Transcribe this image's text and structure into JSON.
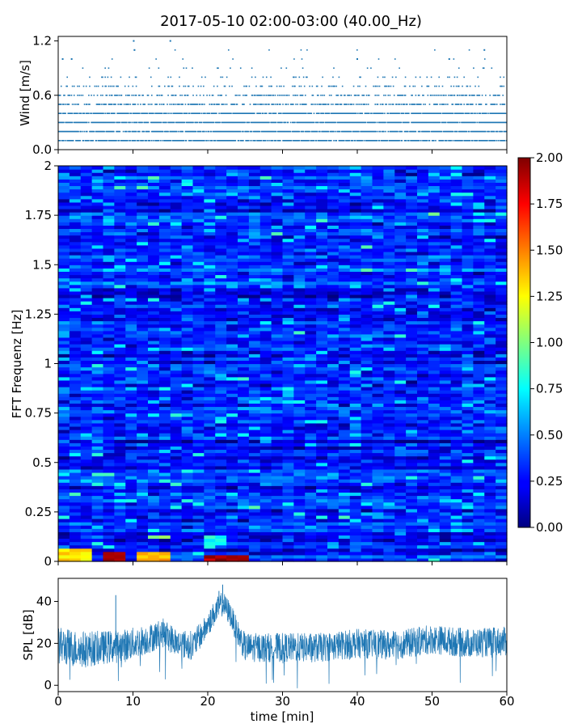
{
  "title": "2017-05-10 02:00-03:00 (40.00_Hz)",
  "chart_data": [
    {
      "type": "scatter",
      "ylabel": "Wind [m/s]",
      "xlabel": "",
      "xlim": [
        0,
        60
      ],
      "ylim": [
        0,
        1.25
      ],
      "yticks": [
        "0.0",
        "0.6",
        "1.2"
      ],
      "xticks": [
        0,
        10,
        20,
        30,
        40,
        50,
        60
      ],
      "marker_color": "#1f77b4",
      "levels": [
        0.1,
        0.2,
        0.3,
        0.4,
        0.5,
        0.6,
        0.7,
        0.8,
        0.9,
        1.0,
        1.1,
        1.2
      ],
      "level_frequency": [
        0.8,
        0.85,
        0.9,
        0.85,
        0.6,
        0.45,
        0.25,
        0.1,
        0.04,
        0.02,
        0.006,
        0.003
      ],
      "notable_points": [
        {
          "x": 10.1,
          "y": 1.2
        },
        {
          "x": 15.0,
          "y": 1.2
        },
        {
          "x": 57.0,
          "y": 1.1
        },
        {
          "x": 0.6,
          "y": 1.0
        },
        {
          "x": 1.8,
          "y": 1.0
        },
        {
          "x": 10.2,
          "y": 1.1
        },
        {
          "x": 40.0,
          "y": 1.0
        },
        {
          "x": 52.3,
          "y": 1.0
        }
      ]
    },
    {
      "type": "heatmap",
      "ylabel": "FFT Frequenz [Hz]",
      "xlim": [
        0,
        60
      ],
      "ylim": [
        0,
        2
      ],
      "yticks": [
        "0",
        "0.25",
        "0.5",
        "0.75",
        "1",
        "1.25",
        "1.5",
        "1.75",
        "2"
      ],
      "colormap": "jet",
      "typical_value": 0.3,
      "hot_regions": [
        {
          "x": [
            0,
            4
          ],
          "y": [
            0,
            0.07
          ],
          "value": 1.4
        },
        {
          "x": [
            5.3,
            8.5
          ],
          "y": [
            0,
            0.05
          ],
          "value": 2.0
        },
        {
          "x": [
            11,
            15
          ],
          "y": [
            0,
            0.05
          ],
          "value": 1.5
        },
        {
          "x": [
            19,
            23
          ],
          "y": [
            0,
            0.03
          ],
          "value": 2.0
        },
        {
          "x": [
            23,
            25
          ],
          "y": [
            0,
            0.03
          ],
          "value": 2.0
        },
        {
          "x": [
            12,
            15
          ],
          "y": [
            0.12,
            0.14
          ],
          "value": 1.1
        },
        {
          "x": [
            19,
            23
          ],
          "y": [
            0.08,
            0.14
          ],
          "value": 0.9
        }
      ],
      "colorbar": {
        "range": [
          0,
          2
        ],
        "ticks": [
          "0.00",
          "0.25",
          "0.50",
          "0.75",
          "1.00",
          "1.25",
          "1.50",
          "1.75",
          "2.00"
        ]
      }
    },
    {
      "type": "line",
      "ylabel": "SPL [dB]",
      "xlabel": "time [min]",
      "xlim": [
        0,
        60
      ],
      "ylim": [
        -3,
        51
      ],
      "yticks": [
        0,
        20,
        40
      ],
      "xticks": [
        0,
        10,
        20,
        30,
        40,
        50,
        60
      ],
      "line_color": "#1f77b4",
      "envelope": [
        {
          "x": 0,
          "mean": 19,
          "spread": 9
        },
        {
          "x": 3,
          "mean": 17,
          "spread": 9
        },
        {
          "x": 6,
          "mean": 18,
          "spread": 8
        },
        {
          "x": 9,
          "mean": 19,
          "spread": 8
        },
        {
          "x": 12,
          "mean": 22,
          "spread": 7
        },
        {
          "x": 14,
          "mean": 25,
          "spread": 7
        },
        {
          "x": 16,
          "mean": 20,
          "spread": 7
        },
        {
          "x": 18,
          "mean": 19,
          "spread": 7
        },
        {
          "x": 19.5,
          "mean": 26,
          "spread": 6
        },
        {
          "x": 21,
          "mean": 35,
          "spread": 6
        },
        {
          "x": 22,
          "mean": 39,
          "spread": 6
        },
        {
          "x": 23,
          "mean": 34,
          "spread": 6
        },
        {
          "x": 24,
          "mean": 25,
          "spread": 6
        },
        {
          "x": 25,
          "mean": 18,
          "spread": 7
        },
        {
          "x": 30,
          "mean": 18,
          "spread": 7
        },
        {
          "x": 35,
          "mean": 18,
          "spread": 7
        },
        {
          "x": 40,
          "mean": 20,
          "spread": 7
        },
        {
          "x": 45,
          "mean": 19,
          "spread": 7
        },
        {
          "x": 50,
          "mean": 22,
          "spread": 7
        },
        {
          "x": 55,
          "mean": 20,
          "spread": 7
        },
        {
          "x": 60,
          "mean": 21,
          "spread": 7
        }
      ],
      "spikes": [
        {
          "x": 7.7,
          "y": 43
        },
        {
          "x": 22.0,
          "y": 48
        },
        {
          "x": 21.5,
          "y": 45
        }
      ]
    }
  ]
}
